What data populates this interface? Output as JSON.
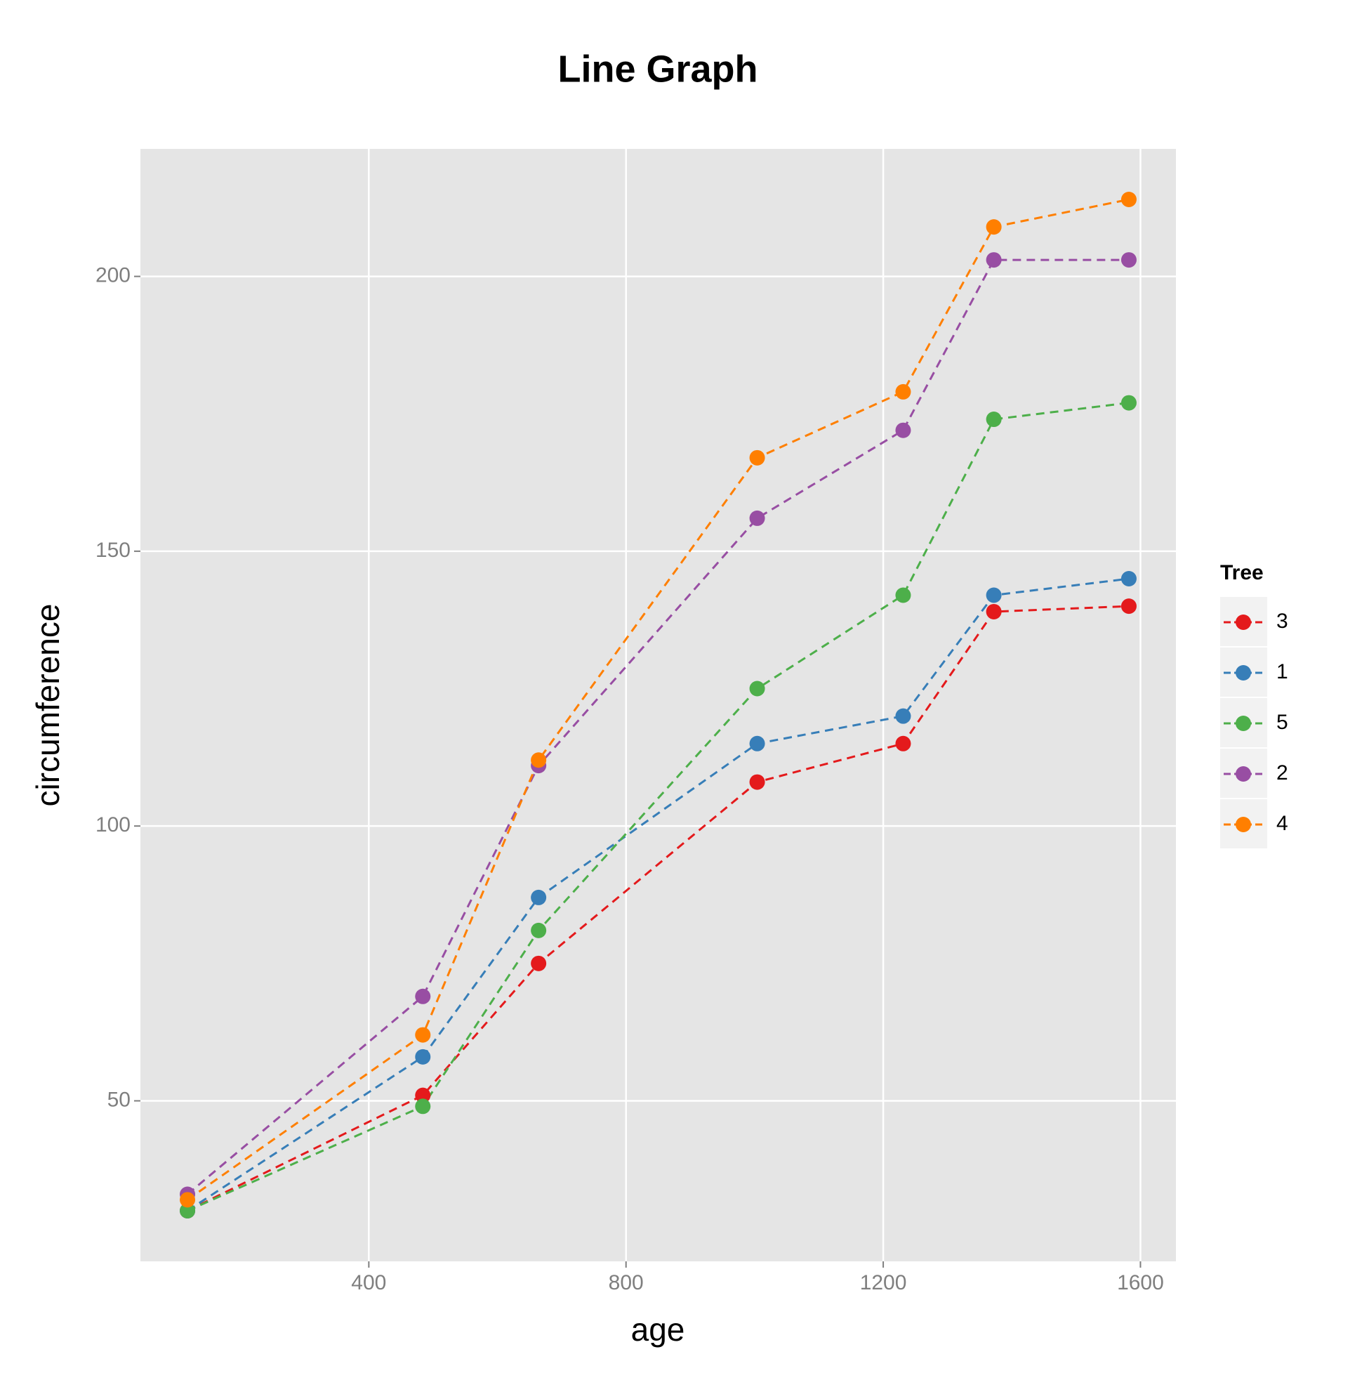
{
  "chart_data": {
    "type": "line",
    "title": "Line Graph",
    "x_label": "age",
    "y_label": "circumference",
    "x": [
      118,
      484,
      664,
      1004,
      1231,
      1372,
      1582
    ],
    "series": [
      {
        "name": "3",
        "color": "#e41a1c",
        "values": [
          30,
          51,
          75,
          108,
          115,
          139,
          140
        ]
      },
      {
        "name": "1",
        "color": "#377eb8",
        "values": [
          30,
          58,
          87,
          115,
          120,
          142,
          145
        ]
      },
      {
        "name": "5",
        "color": "#4daf4a",
        "values": [
          30,
          49,
          81,
          125,
          142,
          174,
          177
        ]
      },
      {
        "name": "2",
        "color": "#984ea3",
        "values": [
          33,
          69,
          111,
          156,
          172,
          203,
          203
        ]
      },
      {
        "name": "4",
        "color": "#ff7f00",
        "values": [
          32,
          62,
          112,
          167,
          179,
          209,
          214
        ]
      }
    ],
    "legend_title": "Tree",
    "legend": "right",
    "line_style": "dashed",
    "grid": true,
    "xlim": [
      44.8,
      1655.2
    ],
    "xticks": [
      400,
      800,
      1200,
      1600
    ],
    "ylim": [
      20.8,
      223.2
    ],
    "yticks": [
      50,
      100,
      150,
      200
    ]
  }
}
